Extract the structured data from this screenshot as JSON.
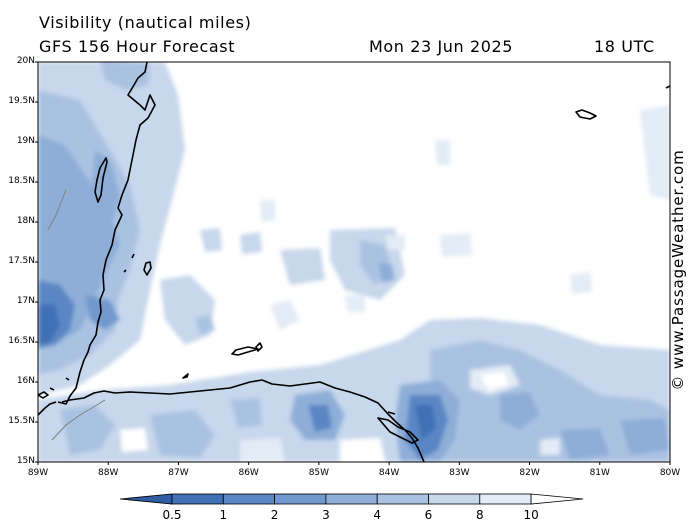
{
  "header": {
    "title": "Visibility (nautical miles)",
    "model": "GFS 156 Hour Forecast",
    "date": "Mon 23 Jun 2025",
    "time": "18 UTC"
  },
  "watermark": "© www.PassageWeather.com",
  "map": {
    "lat_labels": [
      "20N",
      "19.5N",
      "19N",
      "18.5N",
      "18N",
      "17.5N",
      "17N",
      "16.5N",
      "16N",
      "15.5N",
      "15N"
    ],
    "lon_labels": [
      "89W",
      "88W",
      "87W",
      "86W",
      "85W",
      "84W",
      "83W",
      "82W",
      "81W",
      "80W"
    ]
  },
  "colorbar": {
    "labels": [
      "0.5",
      "1",
      "2",
      "3",
      "4",
      "6",
      "8",
      "10"
    ],
    "colors": [
      "#3f6fb5",
      "#5a86c4",
      "#7299cd",
      "#8eaed8",
      "#aac2e2",
      "#c7d7ec",
      "#e3ebf6",
      "#ffffff"
    ]
  }
}
